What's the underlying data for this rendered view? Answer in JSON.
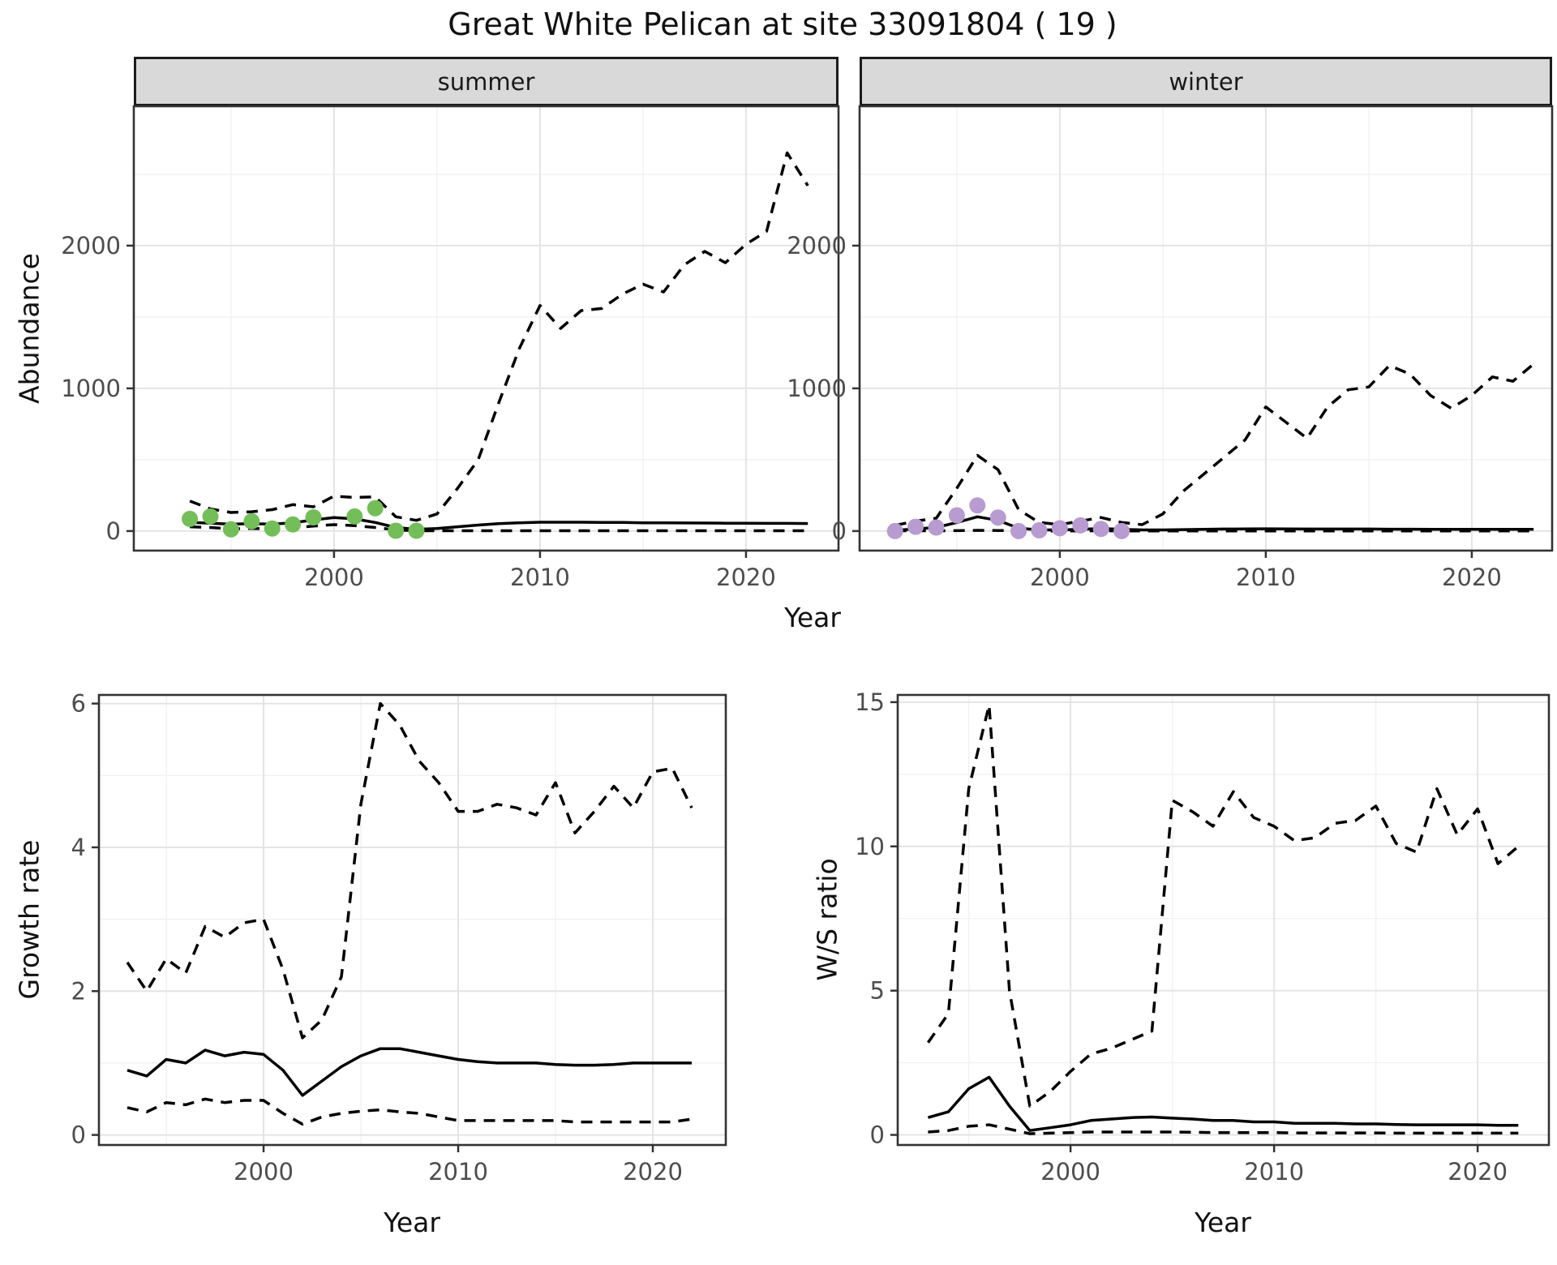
{
  "title": "Great White Pelican at site 33091804 ( 19 )",
  "figure": {
    "facets": {
      "summer": "summer",
      "winter": "winter"
    },
    "axis_titles": {
      "abundance": "Abundance",
      "year": "Year",
      "growth": "Growth rate",
      "ws": "W/S ratio"
    }
  },
  "colors": {
    "summer_dot": "#73be59",
    "winter_dot": "#b79bd1",
    "line": "#000000",
    "panel_border": "#333333",
    "grid_major": "#e4e4e4",
    "grid_minor": "#f1f1f1",
    "tick_text": "#4d4d4d",
    "strip_bg": "#d9d9d9"
  },
  "chart_data": [
    {
      "id": "abundance_summer",
      "type": "line",
      "facet_label": "summer",
      "xlabel": "Year",
      "ylabel": "Abundance",
      "xlim": [
        1990.28,
        2024.49
      ],
      "ylim": [
        -137,
        2977
      ],
      "xticks": [
        2000,
        2010,
        2020
      ],
      "yticks": [
        0,
        1000,
        2000
      ],
      "xminor": [
        1995,
        2005,
        2015
      ],
      "yminor": [
        500,
        1500,
        2500
      ],
      "series": [
        {
          "name": "upper_ci",
          "style": "dashed",
          "x": [
            1993,
            1994,
            1995,
            1996,
            1997,
            1998,
            1999,
            2000,
            2001,
            2002,
            2003,
            2004,
            2005,
            2006,
            2007,
            2008,
            2009,
            2010,
            2011,
            2012,
            2013,
            2014,
            2015,
            2016,
            2017,
            2018,
            2019,
            2020,
            2021,
            2022,
            2023
          ],
          "y": [
            210,
            155,
            130,
            135,
            150,
            185,
            170,
            245,
            235,
            240,
            100,
            75,
            120,
            300,
            500,
            900,
            1280,
            1580,
            1420,
            1545,
            1560,
            1660,
            1730,
            1675,
            1865,
            1960,
            1880,
            2010,
            2100,
            2650,
            2420
          ]
        },
        {
          "name": "estimate",
          "style": "solid",
          "x": [
            1993,
            1994,
            1995,
            1996,
            1997,
            1998,
            1999,
            2000,
            2001,
            2002,
            2003,
            2004,
            2005,
            2006,
            2007,
            2008,
            2009,
            2010,
            2011,
            2012,
            2013,
            2014,
            2015,
            2016,
            2017,
            2018,
            2019,
            2020,
            2021,
            2022,
            2023
          ],
          "y": [
            60,
            55,
            48,
            52,
            48,
            58,
            78,
            95,
            85,
            60,
            25,
            12,
            18,
            30,
            42,
            52,
            58,
            62,
            62,
            62,
            60,
            60,
            58,
            58,
            57,
            56,
            55,
            55,
            54,
            54,
            53
          ]
        },
        {
          "name": "lower_ci",
          "style": "dashed",
          "x": [
            1993,
            1994,
            1995,
            1996,
            1997,
            1998,
            1999,
            2000,
            2001,
            2002,
            2003,
            2004,
            2005,
            2006,
            2007,
            2008,
            2009,
            2010,
            2011,
            2012,
            2013,
            2014,
            2015,
            2016,
            2017,
            2018,
            2019,
            2020,
            2021,
            2022,
            2023
          ],
          "y": [
            30,
            25,
            15,
            18,
            15,
            22,
            35,
            45,
            38,
            25,
            8,
            2,
            2,
            2,
            2,
            2,
            2,
            2,
            2,
            2,
            2,
            2,
            2,
            2,
            2,
            2,
            2,
            2,
            2,
            2,
            2
          ]
        }
      ],
      "points": {
        "name": "observed_counts",
        "color_key": "summer_dot",
        "x": [
          1993,
          1994,
          1995,
          1996,
          1997,
          1998,
          1999,
          2001,
          2002,
          2003,
          2004
        ],
        "y": [
          85,
          102,
          12,
          68,
          18,
          46,
          96,
          102,
          160,
          2,
          2
        ]
      }
    },
    {
      "id": "abundance_winter",
      "type": "line",
      "facet_label": "winter",
      "xlabel": "Year",
      "ylabel": "Abundance",
      "xlim": [
        1990.28,
        2023.9
      ],
      "ylim": [
        -137,
        2977
      ],
      "xticks": [
        2000,
        2010,
        2020
      ],
      "yticks": [
        0,
        1000,
        2000
      ],
      "xminor": [
        1995,
        2005,
        2015
      ],
      "yminor": [
        500,
        1500,
        2500
      ],
      "series": [
        {
          "name": "upper_ci",
          "style": "dashed",
          "x": [
            1992,
            1993,
            1994,
            1995,
            1996,
            1997,
            1998,
            1999,
            2000,
            2001,
            2002,
            2003,
            2004,
            2005,
            2006,
            2007,
            2008,
            2009,
            2010,
            2011,
            2012,
            2013,
            2014,
            2015,
            2016,
            2017,
            2018,
            2019,
            2020,
            2021,
            2022,
            2023
          ],
          "y": [
            40,
            70,
            90,
            300,
            530,
            430,
            150,
            60,
            45,
            70,
            95,
            60,
            45,
            120,
            280,
            400,
            520,
            640,
            870,
            760,
            650,
            870,
            990,
            1010,
            1160,
            1100,
            950,
            860,
            950,
            1080,
            1050,
            1170
          ]
        },
        {
          "name": "estimate",
          "style": "solid",
          "x": [
            1992,
            1993,
            1994,
            1995,
            1996,
            1997,
            1998,
            1999,
            2000,
            2001,
            2002,
            2003,
            2004,
            2005,
            2006,
            2007,
            2008,
            2009,
            2010,
            2011,
            2012,
            2013,
            2014,
            2015,
            2016,
            2017,
            2018,
            2019,
            2020,
            2021,
            2022,
            2023
          ],
          "y": [
            5,
            15,
            25,
            60,
            100,
            75,
            20,
            8,
            8,
            12,
            18,
            12,
            8,
            8,
            10,
            12,
            14,
            15,
            16,
            15,
            14,
            14,
            14,
            14,
            13,
            13,
            12,
            12,
            12,
            12,
            12,
            12
          ]
        },
        {
          "name": "lower_ci",
          "style": "dashed",
          "x": [
            1992,
            1993,
            1994,
            1995,
            1996,
            1997,
            1998,
            1999,
            2000,
            2001,
            2002,
            2003,
            2004,
            2005,
            2006,
            2007,
            2008,
            2009,
            2010,
            2011,
            2012,
            2013,
            2014,
            2015,
            2016,
            2017,
            2018,
            2019,
            2020,
            2021,
            2022,
            2023
          ],
          "y": [
            2,
            2,
            2,
            3,
            5,
            4,
            2,
            1,
            1,
            1,
            2,
            1,
            1,
            1,
            1,
            1,
            1,
            1,
            1,
            1,
            1,
            1,
            1,
            1,
            1,
            1,
            1,
            1,
            1,
            1,
            1,
            1
          ]
        }
      ],
      "points": {
        "name": "observed_counts",
        "color_key": "winter_dot",
        "x": [
          1992,
          1993,
          1994,
          1995,
          1996,
          1997,
          1998,
          1999,
          2000,
          2001,
          2002,
          2003
        ],
        "y": [
          0,
          30,
          25,
          110,
          180,
          95,
          0,
          5,
          20,
          40,
          15,
          0
        ]
      }
    },
    {
      "id": "growth_rate",
      "type": "line",
      "facet_label": "",
      "xlabel": "Year",
      "ylabel": "Growth rate",
      "xlim": [
        1991.54,
        2023.75
      ],
      "ylim": [
        -0.14,
        6.12
      ],
      "xticks": [
        2000,
        2010,
        2020
      ],
      "yticks": [
        0,
        2,
        4,
        6
      ],
      "xminor": [
        1995,
        2005,
        2015
      ],
      "yminor": [
        1,
        3,
        5
      ],
      "series": [
        {
          "name": "upper_ci",
          "style": "dashed",
          "x": [
            1993,
            1994,
            1995,
            1996,
            1997,
            1998,
            1999,
            2000,
            2001,
            2002,
            2003,
            2004,
            2005,
            2006,
            2007,
            2008,
            2009,
            2010,
            2011,
            2012,
            2013,
            2014,
            2015,
            2016,
            2017,
            2018,
            2019,
            2020,
            2021,
            2022
          ],
          "y": [
            2.4,
            2.0,
            2.45,
            2.25,
            2.9,
            2.75,
            2.95,
            3.0,
            2.3,
            1.35,
            1.6,
            2.2,
            4.6,
            6.0,
            5.7,
            5.2,
            4.9,
            4.5,
            4.5,
            4.6,
            4.55,
            4.45,
            4.9,
            4.2,
            4.5,
            4.85,
            4.55,
            5.05,
            5.1,
            4.55
          ]
        },
        {
          "name": "estimate",
          "style": "solid",
          "x": [
            1993,
            1994,
            1995,
            1996,
            1997,
            1998,
            1999,
            2000,
            2001,
            2002,
            2003,
            2004,
            2005,
            2006,
            2007,
            2008,
            2009,
            2010,
            2011,
            2012,
            2013,
            2014,
            2015,
            2016,
            2017,
            2018,
            2019,
            2020,
            2021,
            2022
          ],
          "y": [
            0.9,
            0.82,
            1.05,
            1.0,
            1.18,
            1.1,
            1.15,
            1.12,
            0.9,
            0.55,
            0.75,
            0.95,
            1.1,
            1.2,
            1.2,
            1.15,
            1.1,
            1.05,
            1.02,
            1.0,
            1.0,
            1.0,
            0.98,
            0.97,
            0.97,
            0.98,
            1.0,
            1.0,
            1.0,
            1.0
          ]
        },
        {
          "name": "lower_ci",
          "style": "dashed",
          "x": [
            1993,
            1994,
            1995,
            1996,
            1997,
            1998,
            1999,
            2000,
            2001,
            2002,
            2003,
            2004,
            2005,
            2006,
            2007,
            2008,
            2009,
            2010,
            2011,
            2012,
            2013,
            2014,
            2015,
            2016,
            2017,
            2018,
            2019,
            2020,
            2021,
            2022
          ],
          "y": [
            0.38,
            0.32,
            0.45,
            0.42,
            0.5,
            0.45,
            0.48,
            0.48,
            0.3,
            0.15,
            0.25,
            0.3,
            0.33,
            0.35,
            0.32,
            0.3,
            0.25,
            0.2,
            0.2,
            0.2,
            0.2,
            0.2,
            0.2,
            0.18,
            0.18,
            0.18,
            0.18,
            0.18,
            0.18,
            0.22
          ]
        }
      ]
    },
    {
      "id": "ws_ratio",
      "type": "line",
      "facet_label": "",
      "xlabel": "Year",
      "ylabel": "W/S ratio",
      "xlim": [
        1991.51,
        2023.5
      ],
      "ylim": [
        -0.35,
        15.25
      ],
      "xticks": [
        2000,
        2010,
        2020
      ],
      "yticks": [
        0,
        5,
        10,
        15
      ],
      "xminor": [
        1995,
        2005,
        2015
      ],
      "yminor": [
        2.5,
        7.5,
        12.5
      ],
      "series": [
        {
          "name": "upper_ci",
          "style": "dashed",
          "x": [
            1993,
            1994,
            1995,
            1996,
            1997,
            1998,
            1999,
            2000,
            2001,
            2002,
            2003,
            2004,
            2005,
            2006,
            2007,
            2008,
            2009,
            2010,
            2011,
            2012,
            2013,
            2014,
            2015,
            2016,
            2017,
            2018,
            2019,
            2020,
            2021,
            2022
          ],
          "y": [
            3.2,
            4.2,
            12.0,
            14.9,
            5.0,
            1.0,
            1.5,
            2.2,
            2.8,
            3.0,
            3.3,
            3.6,
            11.6,
            11.2,
            10.7,
            11.9,
            11.0,
            10.7,
            10.2,
            10.3,
            10.8,
            10.9,
            11.4,
            10.1,
            9.8,
            12.0,
            10.4,
            11.3,
            9.4,
            10.0
          ]
        },
        {
          "name": "estimate",
          "style": "solid",
          "x": [
            1993,
            1994,
            1995,
            1996,
            1997,
            1998,
            1999,
            2000,
            2001,
            2002,
            2003,
            2004,
            2005,
            2006,
            2007,
            2008,
            2009,
            2010,
            2011,
            2012,
            2013,
            2014,
            2015,
            2016,
            2017,
            2018,
            2019,
            2020,
            2021,
            2022
          ],
          "y": [
            0.6,
            0.8,
            1.6,
            2.0,
            1.0,
            0.15,
            0.25,
            0.35,
            0.5,
            0.55,
            0.6,
            0.62,
            0.58,
            0.55,
            0.5,
            0.5,
            0.45,
            0.45,
            0.4,
            0.4,
            0.4,
            0.38,
            0.38,
            0.36,
            0.35,
            0.35,
            0.35,
            0.35,
            0.33,
            0.33
          ]
        },
        {
          "name": "lower_ci",
          "style": "dashed",
          "x": [
            1993,
            1994,
            1995,
            1996,
            1997,
            1998,
            1999,
            2000,
            2001,
            2002,
            2003,
            2004,
            2005,
            2006,
            2007,
            2008,
            2009,
            2010,
            2011,
            2012,
            2013,
            2014,
            2015,
            2016,
            2017,
            2018,
            2019,
            2020,
            2021,
            2022
          ],
          "y": [
            0.1,
            0.15,
            0.3,
            0.35,
            0.2,
            0.04,
            0.06,
            0.08,
            0.1,
            0.1,
            0.1,
            0.1,
            0.1,
            0.09,
            0.08,
            0.08,
            0.08,
            0.08,
            0.07,
            0.07,
            0.07,
            0.07,
            0.07,
            0.06,
            0.06,
            0.06,
            0.06,
            0.06,
            0.06,
            0.06
          ]
        }
      ]
    }
  ]
}
